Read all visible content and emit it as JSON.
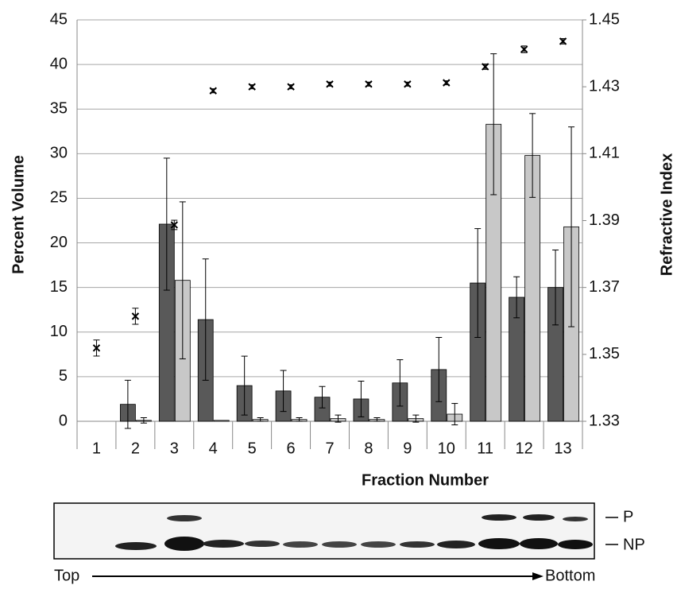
{
  "chart_data": {
    "type": "bar",
    "categories": [
      "1",
      "2",
      "3",
      "4",
      "5",
      "6",
      "7",
      "8",
      "9",
      "10",
      "11",
      "12",
      "13"
    ],
    "series": [
      {
        "color": "#595959",
        "values": [
          0,
          1.9,
          22.1,
          11.4,
          4.0,
          3.4,
          2.7,
          2.5,
          4.3,
          5.8,
          15.5,
          13.9,
          15.0
        ],
        "errors": [
          0,
          2.7,
          7.4,
          6.8,
          3.3,
          2.3,
          1.2,
          2.0,
          2.6,
          3.6,
          6.1,
          2.3,
          4.2
        ]
      },
      {
        "color": "#c8c8c8",
        "values": [
          0,
          0.1,
          15.8,
          0.1,
          0.2,
          0.2,
          0.3,
          0.2,
          0.3,
          0.8,
          33.3,
          29.8,
          21.8
        ],
        "errors": [
          0,
          0.3,
          8.8,
          0,
          0.2,
          0.2,
          0.4,
          0.2,
          0.4,
          1.2,
          7.9,
          4.7,
          11.2
        ]
      },
      {
        "type": "scatter",
        "axis": "y2",
        "color": "#000000",
        "values": [
          1.3519,
          1.3614,
          1.3887,
          1.4288,
          1.43,
          1.43,
          1.4308,
          1.4308,
          1.4308,
          1.4312,
          1.436,
          1.4412,
          1.4436
        ],
        "errors": [
          0.0024,
          0.0024,
          0.0014,
          0.0006,
          0.0006,
          0.0006,
          0.0006,
          0.0006,
          0.0006,
          0.0006,
          0.0008,
          0.001,
          0.0008
        ]
      }
    ],
    "xlabel": "Fraction Number",
    "ylabel": "Percent Volume",
    "y2label": "Refractive Index",
    "ylim": [
      0,
      45
    ],
    "yticks": [
      0,
      5,
      10,
      15,
      20,
      25,
      30,
      35,
      40,
      45
    ],
    "y2lim": [
      1.33,
      1.45
    ],
    "y2ticks": [
      1.33,
      1.35,
      1.37,
      1.39,
      1.41,
      1.43,
      1.45
    ],
    "grid": true
  },
  "blot": {
    "bands": [
      "P",
      "NP"
    ],
    "start": "Top",
    "end": "Bottom"
  }
}
